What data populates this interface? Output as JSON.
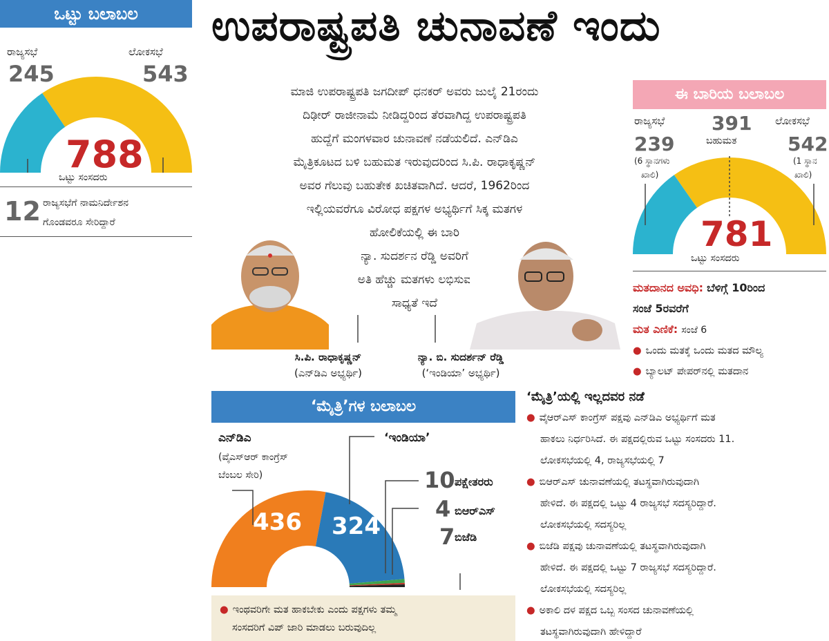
{
  "left_panel": {
    "header": "ಒಟ್ಟು ಬಲಾಬಲ",
    "rajyasabha_label": "ರಾಜ್ಯಸಭೆ",
    "loksabha_label": "ಲೋಕಸಭೆ",
    "rajyasabha_value": "245",
    "loksabha_value": "543",
    "total_value": "788",
    "total_label": "ಒಟ್ಟು ಸಂಸದರು",
    "note_number": "12",
    "note_text_1": "ರಾಜ್ಯಸಭೆಗೆ ನಾಮನಿರ್ದೇಶನ",
    "note_text_2": "ಗೊಂಡವರೂ ಸೇರಿದ್ದಾರೆ",
    "colors": {
      "rajyasabha": "#2bb3cf",
      "loksabha": "#f5bf14"
    },
    "shares": {
      "rajyasabha": 245,
      "loksabha": 543
    }
  },
  "headline": "ಉಪರಾಷ್ಟ್ರಪತಿ ಚುನಾವಣೆ ಇಂದು",
  "intro_lines": [
    "ಮಾಜಿ ಉಪರಾಷ್ಟ್ರಪತಿ ಜಗದೀಪ್ ಧನಕರ್ ಅವರು ಜುಲೈ 21ರಂದು",
    "ದಿಢೀರ್ ರಾಜೀನಾಮೆ ನೀಡಿದ್ದರಿಂದ ತೆರವಾಗಿದ್ದ ಉಪರಾಷ್ಟ್ರಪತಿ",
    "ಹುದ್ದೆಗೆ ಮಂಗಳವಾರ ಚುನಾವಣೆ ನಡೆಯಲಿದೆ. ಎನ್‌ಡಿಎ",
    "ಮೈತ್ರಿಕೂಟದ ಬಳಿ ಬಹುಮತ ಇರುವುದರಿಂದ ಸಿ.ಪಿ. ರಾಧಾಕೃಷ್ಣನ್",
    "ಅವರ ಗೆಲುವು ಬಹುತೇಕ ಖಚಿತವಾಗಿದೆ. ಆದರೆ, 1962ರಿಂದ",
    "ಇಲ್ಲಿಯವರೆಗೂ ವಿರೋಧ ಪಕ್ಷಗಳ ಅಭ್ಯರ್ಥಿಗೆ ಸಿಕ್ಕ ಮತಗಳ",
    "ಹೋಲಿಕೆಯಲ್ಲಿ ಈ ಬಾರಿ",
    "ನ್ಯಾ. ಸುದರ್ಶನ ರೆಡ್ಡಿ ಅವರಿಗೆ",
    "ಅತಿ ಹೆಚ್ಚು ಮತಗಳು ಲಭಿಸುವ",
    "ಸಾಧ್ಯತೆ ಇದೆ"
  ],
  "candidates": [
    {
      "name": "ಸಿ.ಪಿ. ರಾಧಾಕೃಷ್ಣನ್",
      "party": "(ಎನ್‌ಡಿಎ ಅಭ್ಯರ್ಥಿ)"
    },
    {
      "name": "ನ್ಯಾ. ಬಿ. ಸುದರ್ಶನ್ ರೆಡ್ಡಿ",
      "party": "(‘ಇಂಡಿಯಾ’ ಅಭ್ಯರ್ಥಿ)"
    }
  ],
  "right_panel": {
    "header": "ಈ ಬಾರಿಯ ಬಲಾಬಲ",
    "rajyasabha_label": "ರಾಜ್ಯಸಭೆ",
    "loksabha_label": "ಲೋಕಸಭೆ",
    "majority_value": "391",
    "majority_label": "ಬಹುಮತ",
    "rajyasabha_value": "239",
    "loksabha_value": "542",
    "rajyasabha_note_1": "(6 ಸ್ಥಾನಗಳು",
    "rajyasabha_note_2": "ಖಾಲಿ)",
    "loksabha_note_1": "(1 ಸ್ಥಾನ",
    "loksabha_note_2": "ಖಾಲಿ)",
    "total_value": "781",
    "total_label": "ಒಟ್ಟು ಸಂಸದರು",
    "colors": {
      "rajyasabha": "#2bb3cf",
      "loksabha": "#f5bf14"
    },
    "shares": {
      "rajyasabha": 239,
      "loksabha": 542
    }
  },
  "voting_info": {
    "time_label": "ಮತದಾನದ ಅವಧಿ:",
    "time_value_1": "ಬೆಳಿಗ್ಗೆ 10ರಿಂದ",
    "time_value_2": "ಸಂಜೆ 5ರವರೆಗೆ",
    "count_label": "ಮತ ಎಣಿಕೆ:",
    "count_value": "ಸಂಜೆ 6",
    "bullets": [
      "ಒಂದು ಮತಕ್ಕೆ ಒಂದು ಮತದ ಮೌಲ್ಯ",
      "ಬ್ಯಾಲಟ್ ಪೇಪರ್‌ನಲ್ಲಿ ಮತದಾನ"
    ]
  },
  "alliance_panel": {
    "header": "‘ಮೈತ್ರಿ’ಗಳ ಬಲಾಬಲ",
    "nda_label": "ಎನ್‌ಡಿಎ",
    "nda_note_1": "(ವೈಎಸ್‌ಆರ್ ಕಾಂಗ್ರೆಸ್",
    "nda_note_2": "ಬೆಂಬಲ ಸೇರಿ)",
    "india_label": "‘ಇಂಡಿಯಾ’",
    "nda_value": "436",
    "india_value": "324",
    "others_value": "10",
    "others_label": "ಪಕ್ಷೇತರರು",
    "brs_value": "4",
    "brs_label": "ಬಿಆರ್‌ಎಸ್",
    "bjd_value": "7",
    "bjd_label": "ಬಿಜೆಡಿ",
    "footer": "ಇಂಥವರಿಗೇ ಮತ ಹಾಕಬೇಕು ಎಂದು ಪಕ್ಷಗಳು ತಮ್ಮ",
    "footer_2": "ಸಂಸದರಿಗೆ ವಿಪ್ ಜಾರಿ ಮಾಡಲು ಬರುವುದಿಲ್ಲ",
    "colors": {
      "nda": "#f07f1e",
      "india": "#2a7ab8",
      "others": "#3fa34d",
      "brs": "#c0392b",
      "bjd": "#222222"
    },
    "shares": {
      "nda": 436,
      "india": 324,
      "others": 10,
      "brs": 4,
      "bjd": 7
    }
  },
  "non_alliance": {
    "header": "‘ಮೈತ್ರಿ’ಯಲ್ಲಿ ಇಲ್ಲದವರ ನಡೆ",
    "items": [
      [
        "ವೈಆರ್‌ಎಸ್ ಕಾಂಗ್ರೆಸ್ ಪಕ್ಷವು ಎನ್‌ಡಿಎ ಅಭ್ಯರ್ಥಿಗೆ ಮತ",
        "ಹಾಕಲು ನಿರ್ಧರಿಸಿದೆ. ಈ ಪಕ್ಷದಲ್ಲಿರುವ ಒಟ್ಟು ಸಂಸದರು 11.",
        "ಲೋಕಸಭೆಯಲ್ಲಿ 4, ರಾಜ್ಯಸಭೆಯಲ್ಲಿ 7"
      ],
      [
        "ಬಿಆರ್‌ಎಸ್ ಚುನಾವಣೆಯಲ್ಲಿ ತಟಸ್ಥವಾಗಿರುವುದಾಗಿ",
        "ಹೇಳಿದೆ. ಈ ಪಕ್ಷದಲ್ಲಿ ಒಟ್ಟು 4 ರಾಜ್ಯಸಭೆ ಸದಸ್ಯರಿದ್ದಾರೆ.",
        "ಲೋಕಸಭೆಯಲ್ಲಿ ಸದಸ್ಯರಿಲ್ಲ"
      ],
      [
        "ಬಿಜೆಡಿ ಪಕ್ಷವು ಚುನಾವಣೆಯಲ್ಲಿ ತಟಸ್ಥವಾಗಿರುವುದಾಗಿ",
        "ಹೇಳಿದೆ. ಈ ಪಕ್ಷದಲ್ಲಿ ಒಟ್ಟು 7 ರಾಜ್ಯಸಭೆ ಸದಸ್ಯರಿದ್ದಾರೆ.",
        "ಲೋಕಸಭೆಯಲ್ಲಿ ಸದಸ್ಯರಿಲ್ಲ"
      ],
      [
        "ಅಕಾಲಿ ದಳ ಪಕ್ಷದ ಒಬ್ಬ ಸಂಸದ ಚುನಾವಣೆಯಲ್ಲಿ",
        "ತಟಸ್ಥವಾಗಿರುವುದಾಗಿ ಹೇಳಿದ್ದಾರೆ"
      ]
    ]
  }
}
